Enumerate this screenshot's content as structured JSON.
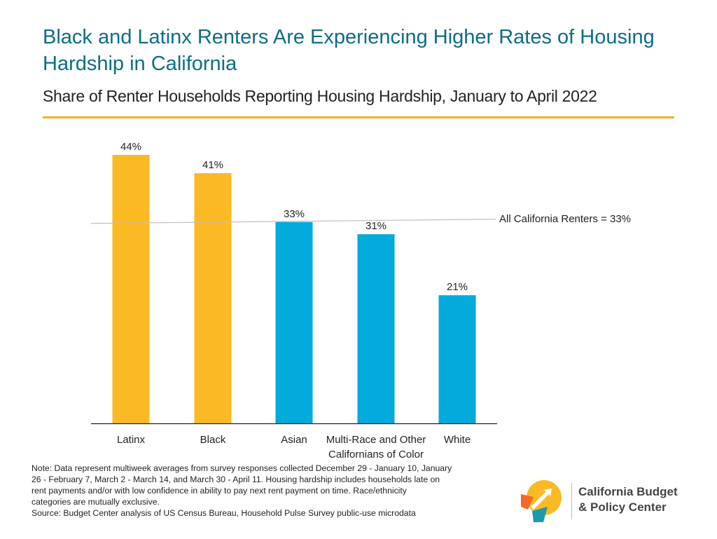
{
  "title": "Black and Latinx Renters Are Experiencing Higher Rates of Housing Hardship in California",
  "subtitle": "Share of Renter Households Reporting Housing Hardship, January to April 2022",
  "chart_data": {
    "type": "bar",
    "title": "Black and Latinx Renters Are Experiencing Higher Rates of Housing Hardship in California",
    "subtitle": "Share of Renter Households Reporting Housing Hardship, January to April 2022",
    "categories": [
      "Latinx",
      "Black",
      "Asian",
      "Multi-Race and Other Californians of Color",
      "White"
    ],
    "category_lines": [
      [
        "Latinx"
      ],
      [
        "Black"
      ],
      [
        "Asian"
      ],
      [
        "Multi-Race and Other",
        "Californians of Color"
      ],
      [
        "White"
      ]
    ],
    "values": [
      44,
      41,
      33,
      31,
      21
    ],
    "value_labels": [
      "44%",
      "41%",
      "33%",
      "31%",
      "21%"
    ],
    "bar_colors": [
      "#fbb923",
      "#fbb923",
      "#02abdb",
      "#02abdb",
      "#02abdb"
    ],
    "unit": "%",
    "ylim": [
      0,
      44
    ],
    "grid": false,
    "reference_line": {
      "value": 33,
      "label": "All California Renters = 33%",
      "color": "#bfbfbf"
    }
  },
  "note": {
    "line1": "Note: Data represent multiweek averages from survey responses collected  December 29 - January 10, January",
    "line2": "26 - February 7, March 2 - March 14, and March 30 - April 11. Housing hardship includes households late on",
    "line3": "rent payments and/or with low confidence in ability to pay next rent payment on time. Race/ethnicity",
    "line4": "categories are mutually exclusive.",
    "source": "Source: Budget Center analysis of US Census Bureau, Household Pulse Survey public-use microdata"
  },
  "logo": {
    "line1": "California Budget",
    "line2": "& Policy Center",
    "colors": {
      "yellow": "#fbb923",
      "orange": "#ef6a2b",
      "teal": "#1c9aa8"
    }
  },
  "colors": {
    "title": "#0a6e88",
    "rule": "#f3b21c"
  }
}
